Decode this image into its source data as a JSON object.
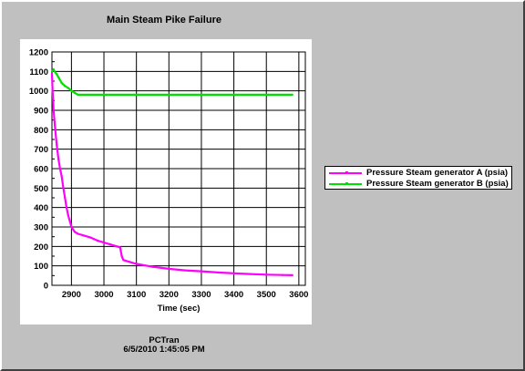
{
  "chart_data": {
    "type": "line",
    "title": "Main Steam Pike Failure",
    "xlabel": "Time (sec)",
    "ylabel": "",
    "xlim": [
      2840,
      3620
    ],
    "ylim": [
      0,
      1200
    ],
    "xticks": [
      2900,
      3000,
      3100,
      3200,
      3300,
      3400,
      3500,
      3600
    ],
    "yticks": [
      0,
      100,
      200,
      300,
      400,
      500,
      600,
      700,
      800,
      900,
      1000,
      1100,
      1200
    ],
    "grid": true,
    "legend_position": "right",
    "series": [
      {
        "name": "Pressure Steam generator A (psia)",
        "color": "#ff00ff",
        "x": [
          2840,
          2842,
          2845,
          2850,
          2855,
          2860,
          2865,
          2870,
          2875,
          2880,
          2885,
          2890,
          2895,
          2900,
          2910,
          2920,
          2940,
          2960,
          2980,
          3000,
          3020,
          3040,
          3050,
          3055,
          3060,
          3080,
          3100,
          3150,
          3200,
          3250,
          3300,
          3350,
          3400,
          3450,
          3500,
          3550,
          3580
        ],
        "y": [
          1090,
          1000,
          900,
          800,
          720,
          650,
          600,
          560,
          500,
          450,
          400,
          360,
          330,
          300,
          275,
          265,
          255,
          245,
          230,
          220,
          210,
          200,
          195,
          150,
          130,
          120,
          110,
          95,
          85,
          77,
          72,
          66,
          62,
          58,
          55,
          53,
          52
        ]
      },
      {
        "name": "Pressure Steam generator B (psia)",
        "color": "#00e000",
        "x": [
          2840,
          2845,
          2850,
          2855,
          2860,
          2870,
          2880,
          2890,
          2900,
          2910,
          2920,
          2950,
          3000,
          3100,
          3200,
          3300,
          3400,
          3500,
          3580
        ],
        "y": [
          1100,
          1110,
          1095,
          1085,
          1070,
          1040,
          1025,
          1015,
          1000,
          990,
          980,
          980,
          980,
          980,
          980,
          980,
          980,
          980,
          980
        ]
      }
    ]
  },
  "footer": {
    "line1": "PCTran",
    "line2": "6/5/2010 1:45:05 PM"
  }
}
